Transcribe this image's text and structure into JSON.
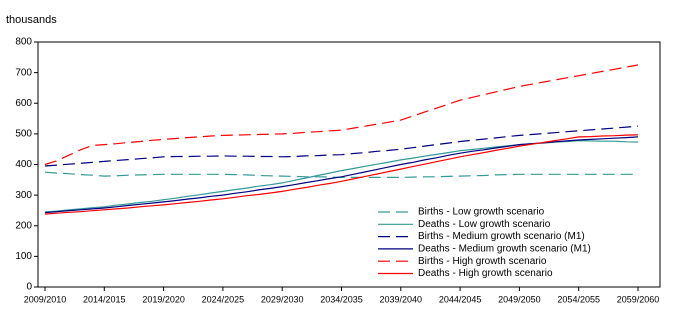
{
  "chart_data": {
    "type": "line",
    "y_label": "thousands",
    "categories": [
      "2009/2010",
      null,
      null,
      null,
      null,
      "2014/2015",
      null,
      null,
      null,
      null,
      "2019/2020",
      null,
      null,
      null,
      null,
      "2024/2025",
      null,
      null,
      null,
      null,
      "2029/2030",
      null,
      null,
      null,
      null,
      "2034/2035",
      null,
      null,
      null,
      null,
      "2039/2040",
      null,
      null,
      null,
      null,
      "2044/2045",
      null,
      null,
      null,
      null,
      "2049/2050",
      null,
      null,
      null,
      null,
      "2054/2055",
      null,
      null,
      null,
      null,
      "2059/2060"
    ],
    "ylim": [
      0,
      800
    ],
    "yticks": [
      0,
      100,
      200,
      300,
      400,
      500,
      600,
      700,
      800
    ],
    "legend": "lower right",
    "series": [
      {
        "name": "Births - Low growth scenario",
        "color": "#339999",
        "dashed": true,
        "values": [
          375,
          372,
          370,
          367,
          365,
          362,
          363,
          365,
          366,
          367,
          368,
          368,
          368,
          368,
          368,
          368,
          367,
          366,
          364,
          363,
          362,
          361,
          360,
          360,
          359,
          358,
          358,
          358,
          358,
          358,
          358,
          359,
          360,
          360,
          361,
          362,
          363,
          364,
          366,
          367,
          368,
          368,
          368,
          368,
          368,
          368,
          368,
          368,
          368,
          368,
          368
        ]
      },
      {
        "name": "Deaths - Low growth scenario",
        "color": "#339999",
        "dashed": false,
        "values": [
          245,
          248,
          252,
          255,
          259,
          262,
          267,
          271,
          276,
          280,
          285,
          290,
          296,
          301,
          307,
          312,
          318,
          323,
          329,
          334,
          340,
          348,
          356,
          364,
          372,
          380,
          387,
          394,
          401,
          408,
          415,
          421,
          427,
          433,
          439,
          445,
          449,
          453,
          457,
          461,
          465,
          468,
          470,
          473,
          475,
          478,
          477,
          476,
          476,
          474,
          473
        ]
      },
      {
        "name": "Births - Medium growth scenario (M1)",
        "color": "#000080",
        "dashed": true,
        "values": [
          395,
          398,
          401,
          404,
          407,
          410,
          413,
          416,
          419,
          422,
          425,
          426,
          426,
          427,
          427,
          428,
          427,
          427,
          426,
          426,
          425,
          426,
          428,
          429,
          431,
          432,
          436,
          439,
          443,
          446,
          450,
          455,
          460,
          465,
          470,
          475,
          479,
          483,
          487,
          491,
          495,
          498,
          501,
          504,
          507,
          510,
          513,
          516,
          519,
          522,
          525
        ]
      },
      {
        "name": "Deaths - Medium growth scenario (M1)",
        "color": "#000080",
        "dashed": false,
        "values": [
          243,
          246,
          249,
          252,
          255,
          258,
          262,
          266,
          270,
          274,
          278,
          282,
          287,
          291,
          296,
          300,
          306,
          311,
          317,
          322,
          328,
          334,
          341,
          347,
          354,
          360,
          368,
          376,
          384,
          392,
          400,
          407,
          415,
          422,
          430,
          437,
          443,
          448,
          454,
          459,
          465,
          468,
          471,
          474,
          477,
          480,
          482,
          484,
          486,
          488,
          490
        ]
      },
      {
        "name": "Births - High growth scenario",
        "color": "#ff0000",
        "dashed": true,
        "values": [
          400,
          412,
          430,
          448,
          462,
          465,
          468,
          472,
          475,
          479,
          482,
          485,
          488,
          490,
          493,
          495,
          496,
          497,
          498,
          499,
          500,
          502,
          505,
          507,
          510,
          512,
          519,
          525,
          532,
          538,
          545,
          558,
          571,
          584,
          597,
          610,
          619,
          628,
          637,
          646,
          655,
          662,
          669,
          676,
          683,
          690,
          697,
          704,
          711,
          718,
          725
        ]
      },
      {
        "name": "Deaths - High growth scenario",
        "color": "#ff0000",
        "dashed": false,
        "values": [
          238,
          241,
          244,
          246,
          249,
          252,
          255,
          258,
          262,
          265,
          268,
          272,
          276,
          280,
          284,
          288,
          293,
          298,
          302,
          307,
          312,
          319,
          325,
          332,
          338,
          345,
          353,
          361,
          369,
          377,
          385,
          393,
          401,
          409,
          417,
          425,
          432,
          439,
          446,
          453,
          460,
          466,
          472,
          478,
          484,
          490,
          491,
          493,
          494,
          496,
          497
        ]
      }
    ]
  }
}
